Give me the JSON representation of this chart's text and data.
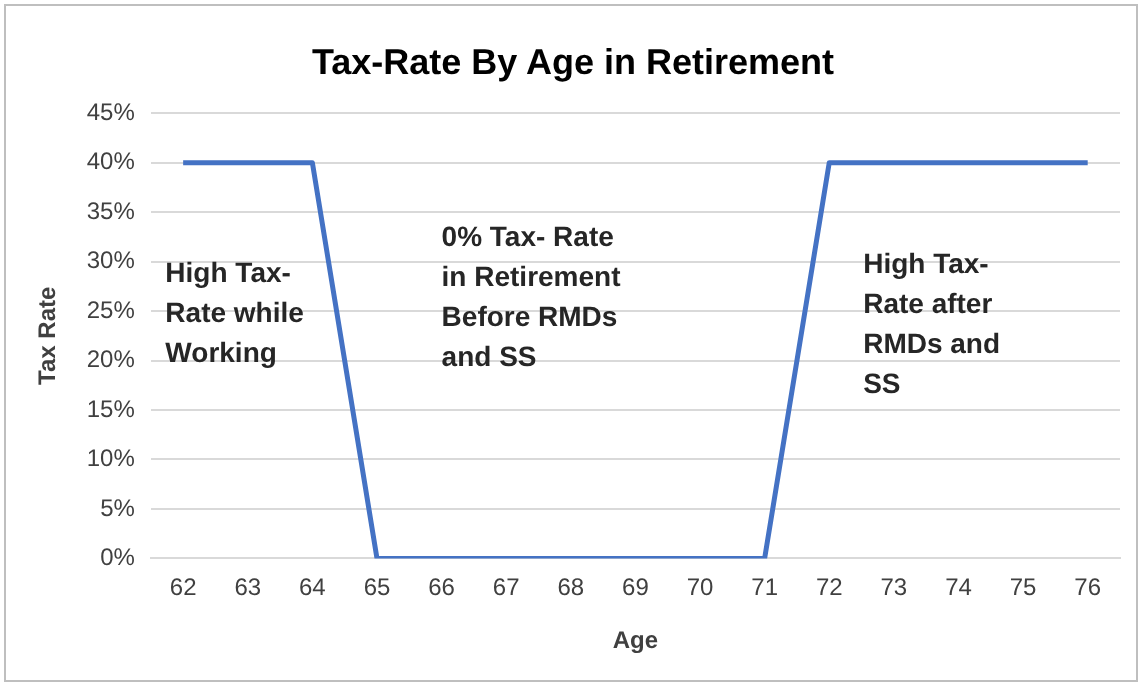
{
  "chart_data": {
    "type": "line",
    "title": "Tax-Rate By Age in Retirement",
    "xlabel": "Age",
    "ylabel": "Tax Rate",
    "categories": [
      "62",
      "63",
      "64",
      "65",
      "66",
      "67",
      "68",
      "69",
      "70",
      "71",
      "72",
      "73",
      "74",
      "75",
      "76"
    ],
    "series": [
      {
        "color": "#4472c4",
        "values": [
          40,
          40,
          40,
          0,
          0,
          0,
          0,
          0,
          0,
          0,
          40,
          40,
          40,
          40,
          40
        ]
      }
    ],
    "ylim": [
      0,
      45
    ],
    "yticks": [
      {
        "value": 0,
        "label": "0%"
      },
      {
        "value": 5,
        "label": "5%"
      },
      {
        "value": 10,
        "label": "10%"
      },
      {
        "value": 15,
        "label": "15%"
      },
      {
        "value": 20,
        "label": "20%"
      },
      {
        "value": 25,
        "label": "25%"
      },
      {
        "value": 30,
        "label": "30%"
      },
      {
        "value": 35,
        "label": "35%"
      },
      {
        "value": 40,
        "label": "40%"
      },
      {
        "value": 45,
        "label": "45%"
      }
    ],
    "grid": "y",
    "legend": false,
    "marker": "none",
    "line_style": "solid",
    "annotations": [
      "High Tax-\nRate while\nWorking",
      "0% Tax- Rate\nin Retirement\nBefore RMDs\nand SS",
      "High Tax-\nRate after\nRMDs and\nSS"
    ]
  }
}
